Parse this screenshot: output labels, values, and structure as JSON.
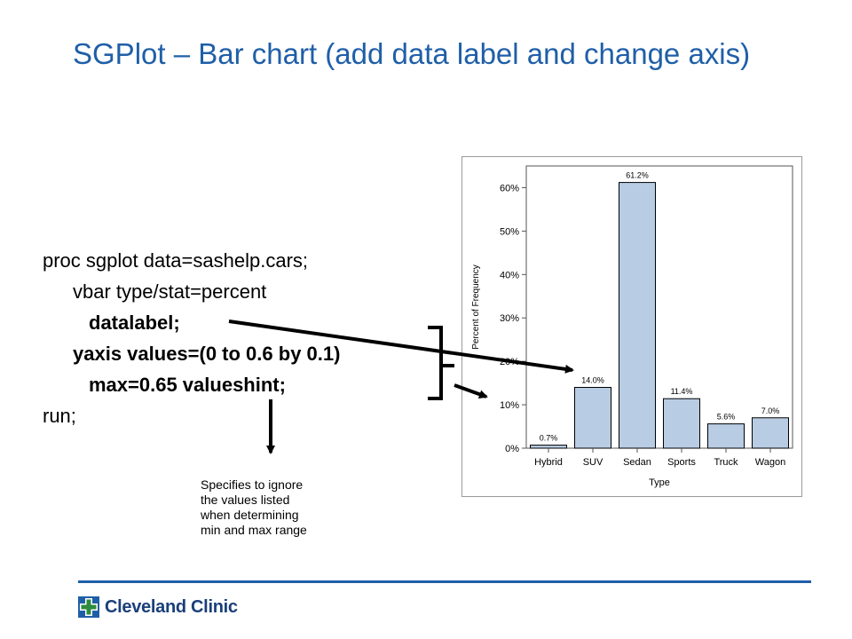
{
  "slide": {
    "title": "SGPlot – Bar chart (add data label and change axis)"
  },
  "code": {
    "lines": [
      "proc sgplot data=sashelp.cars;",
      "vbar type/stat=percent",
      "datalabel;",
      "yaxis values=(0 to 0.6 by 0.1)",
      "max=0.65 valueshint;",
      "run;"
    ]
  },
  "annotation": {
    "lines": [
      "Specifies to ignore",
      "the values listed",
      "when determining",
      "min and max range"
    ]
  },
  "footer": {
    "logo_text": "Cleveland Clinic",
    "brand_color": "#1f5fa8"
  },
  "chart_data": {
    "type": "bar",
    "categories": [
      "Hybrid",
      "SUV",
      "Sedan",
      "Sports",
      "Truck",
      "Wagon"
    ],
    "values": [
      0.7,
      14.0,
      61.2,
      11.4,
      5.6,
      7.0
    ],
    "data_labels": [
      "0.7%",
      "14.0%",
      "61.2%",
      "11.4%",
      "5.6%",
      "7.0%"
    ],
    "yticks": [
      0,
      10,
      20,
      30,
      40,
      50,
      60
    ],
    "ytick_labels": [
      "0%",
      "10%",
      "20%",
      "30%",
      "40%",
      "50%",
      "60%"
    ],
    "ylim": [
      0,
      65
    ],
    "xlabel": "Type",
    "ylabel": "Percent of Frequency",
    "bar_color": "#b8cce4",
    "grid": false
  }
}
